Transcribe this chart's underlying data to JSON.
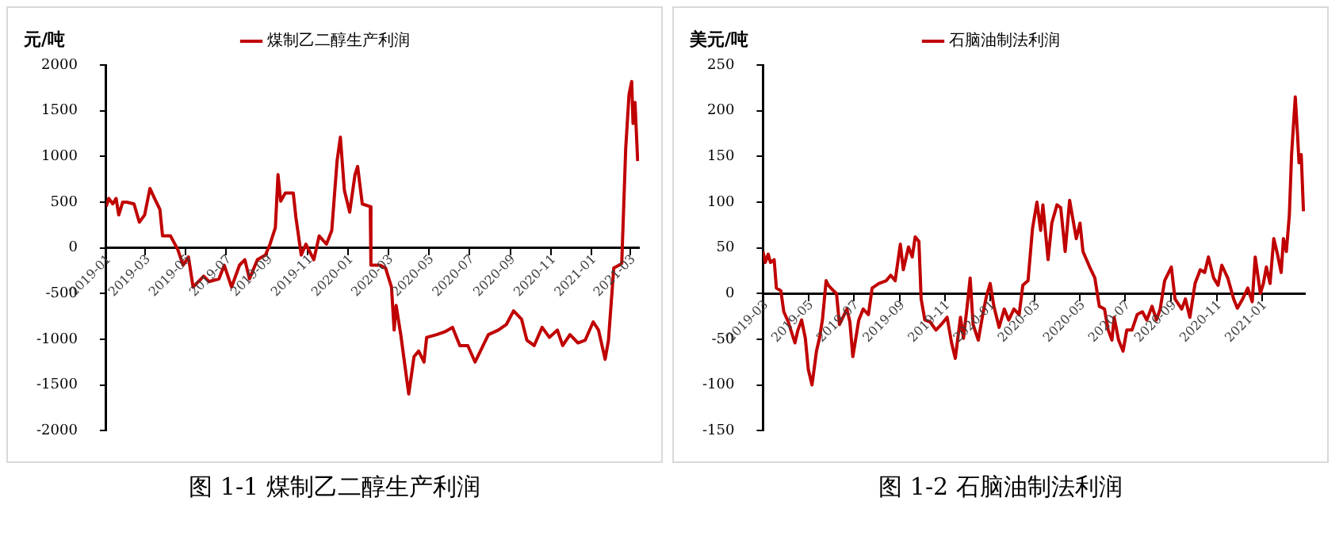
{
  "chart_data": [
    {
      "type": "line",
      "title": "图 1-1  煤制乙二醇生产利润",
      "ylabel": "元/吨",
      "legend": "top",
      "grid": false,
      "marker": "none",
      "line_style": "solid",
      "xlim": [
        "2019-01-01",
        "2021-03-14"
      ],
      "xticks": [
        "2019-01",
        "2019-03",
        "2019-05",
        "2019-07",
        "2019-09",
        "2019-11",
        "2020-01",
        "2020-03",
        "2020-05",
        "2020-07",
        "2020-09",
        "2020-11",
        "2021-01",
        "2021-03"
      ],
      "ylim": [
        -2000,
        2000
      ],
      "yticks": [
        -2000,
        -1500,
        -1000,
        -500,
        0,
        500,
        1000,
        1500,
        2000
      ],
      "x": [
        "2019-01-01",
        "2019-01-05",
        "2019-01-11",
        "2019-01-16",
        "2019-01-20",
        "2019-01-26",
        "2019-02-01",
        "2019-02-12",
        "2019-02-20",
        "2019-02-28",
        "2019-03-08",
        "2019-03-15",
        "2019-03-23",
        "2019-03-27",
        "2019-04-08",
        "2019-04-19",
        "2019-04-27",
        "2019-05-05",
        "2019-05-12",
        "2019-05-28",
        "2019-06-05",
        "2019-06-20",
        "2019-06-28",
        "2019-07-09",
        "2019-07-21",
        "2019-07-29",
        "2019-08-05",
        "2019-08-17",
        "2019-08-29",
        "2019-09-05",
        "2019-09-13",
        "2019-09-17",
        "2019-09-21",
        "2019-09-28",
        "2019-10-10",
        "2019-10-14",
        "2019-10-22",
        "2019-10-29",
        "2019-11-10",
        "2019-11-18",
        "2019-11-29",
        "2019-12-07",
        "2019-12-15",
        "2019-12-20",
        "2019-12-26",
        "2020-01-03",
        "2020-01-11",
        "2020-01-15",
        "2020-01-22",
        "2020-02-03",
        "2020-02-04",
        "2020-02-18",
        "2020-02-26",
        "2020-03-06",
        "2020-03-10",
        "2020-03-13",
        "2020-03-20",
        "2020-04-01",
        "2020-04-09",
        "2020-04-16",
        "2020-04-24",
        "2020-04-28",
        "2020-05-13",
        "2020-05-25",
        "2020-06-06",
        "2020-06-17",
        "2020-06-29",
        "2020-07-10",
        "2020-07-18",
        "2020-07-30",
        "2020-08-14",
        "2020-08-26",
        "2020-09-06",
        "2020-09-18",
        "2020-09-26",
        "2020-10-07",
        "2020-10-19",
        "2020-10-30",
        "2020-11-11",
        "2020-11-19",
        "2020-11-30",
        "2020-12-12",
        "2020-12-23",
        "2021-01-04",
        "2021-01-12",
        "2021-01-22",
        "2021-01-27",
        "2021-02-04",
        "2021-02-12",
        "2021-02-16",
        "2021-02-22",
        "2021-02-27",
        "2021-03-03",
        "2021-03-05",
        "2021-03-08",
        "2021-03-12"
      ],
      "series": [
        {
          "name": "煤制乙二醇生产利润",
          "color": "#c00000",
          "values": [
            450,
            540,
            480,
            540,
            360,
            500,
            500,
            480,
            280,
            360,
            650,
            540,
            420,
            130,
            130,
            -20,
            -190,
            -100,
            -430,
            -310,
            -370,
            -340,
            -190,
            -430,
            -190,
            -130,
            -340,
            -130,
            -80,
            40,
            220,
            800,
            510,
            600,
            600,
            330,
            -80,
            40,
            -130,
            130,
            40,
            190,
            950,
            1210,
            630,
            390,
            800,
            890,
            480,
            450,
            -190,
            -190,
            -220,
            -430,
            -900,
            -630,
            -950,
            -1600,
            -1190,
            -1130,
            -1250,
            -980,
            -950,
            -920,
            -870,
            -1070,
            -1070,
            -1250,
            -1130,
            -950,
            -900,
            -840,
            -690,
            -780,
            -1010,
            -1070,
            -870,
            -980,
            -900,
            -1070,
            -950,
            -1040,
            -1010,
            -810,
            -900,
            -1220,
            -1010,
            -220,
            -190,
            -170,
            1090,
            1680,
            1820,
            1360,
            1590,
            950
          ]
        }
      ]
    },
    {
      "type": "line",
      "title": "图 1-2  石脑油制法利润",
      "ylabel": "美元/吨",
      "legend": "top",
      "grid": false,
      "marker": "none",
      "line_style": "solid",
      "xlim": [
        "2019-03-01",
        "2021-02-28"
      ],
      "xticks": [
        "2019-03",
        "2019-05",
        "2019-07",
        "2019-09",
        "2019-11",
        "2020-01",
        "2020-03",
        "2020-05",
        "2020-07",
        "2020-09",
        "2020-11",
        "2021-01"
      ],
      "ylim": [
        -150,
        250
      ],
      "yticks": [
        -150,
        -100,
        -50,
        0,
        50,
        100,
        150,
        200,
        250
      ],
      "x": [
        "2019-03-01",
        "2019-03-04",
        "2019-03-08",
        "2019-03-11",
        "2019-03-16",
        "2019-03-19",
        "2019-03-25",
        "2019-03-29",
        "2019-04-04",
        "2019-04-13",
        "2019-04-17",
        "2019-04-22",
        "2019-04-27",
        "2019-05-01",
        "2019-05-06",
        "2019-05-12",
        "2019-05-16",
        "2019-05-20",
        "2019-05-25",
        "2019-05-28",
        "2019-06-04",
        "2019-06-08",
        "2019-06-12",
        "2019-06-22",
        "2019-06-26",
        "2019-06-30",
        "2019-07-08",
        "2019-07-14",
        "2019-07-21",
        "2019-07-26",
        "2019-08-04",
        "2019-08-14",
        "2019-08-20",
        "2019-08-26",
        "2019-09-02",
        "2019-09-06",
        "2019-09-13",
        "2019-09-18",
        "2019-09-22",
        "2019-09-27",
        "2019-09-30",
        "2019-10-05",
        "2019-10-12",
        "2019-10-20",
        "2019-10-27",
        "2019-11-04",
        "2019-11-10",
        "2019-11-15",
        "2019-11-22",
        "2019-11-26",
        "2019-12-01",
        "2019-12-05",
        "2019-12-09",
        "2019-12-16",
        "2019-12-22",
        "2019-12-27",
        "2020-01-01",
        "2020-01-06",
        "2020-01-13",
        "2020-01-20",
        "2020-01-26",
        "2020-02-02",
        "2020-02-09",
        "2020-02-14",
        "2020-02-21",
        "2020-02-27",
        "2020-03-04",
        "2020-03-09",
        "2020-03-12",
        "2020-03-19",
        "2020-03-24",
        "2020-03-31",
        "2020-04-05",
        "2020-04-11",
        "2020-04-17",
        "2020-04-26",
        "2020-05-01",
        "2020-05-05",
        "2020-05-14",
        "2020-05-21",
        "2020-05-27",
        "2020-06-03",
        "2020-06-08",
        "2020-06-13",
        "2020-06-16",
        "2020-06-22",
        "2020-06-28",
        "2020-07-03",
        "2020-07-10",
        "2020-07-17",
        "2020-07-24",
        "2020-07-30",
        "2020-08-06",
        "2020-08-12",
        "2020-08-17",
        "2020-08-23",
        "2020-09-01",
        "2020-09-06",
        "2020-09-15",
        "2020-09-20",
        "2020-09-26",
        "2020-10-03",
        "2020-10-10",
        "2020-10-16",
        "2020-10-21",
        "2020-10-28",
        "2020-11-03",
        "2020-11-08",
        "2020-11-16",
        "2020-11-24",
        "2020-11-29",
        "2020-12-06",
        "2020-12-13",
        "2020-12-19",
        "2020-12-23",
        "2020-12-30",
        "2021-01-03",
        "2021-01-07",
        "2021-01-12",
        "2021-01-17",
        "2021-01-22",
        "2021-01-27",
        "2021-01-30",
        "2021-02-03",
        "2021-02-07",
        "2021-02-10",
        "2021-02-15",
        "2021-02-18",
        "2021-02-20",
        "2021-02-23",
        "2021-02-26"
      ],
      "series": [
        {
          "name": "石脑油制法利润",
          "color": "#c00000",
          "values": [
            46,
            34,
            43,
            34,
            37,
            6,
            3,
            -20,
            -31,
            -54,
            -40,
            -29,
            -49,
            -83,
            -100,
            -63,
            -49,
            -29,
            14,
            9,
            3,
            0,
            -34,
            -17,
            -31,
            -69,
            -29,
            -17,
            -23,
            6,
            11,
            14,
            20,
            14,
            54,
            26,
            51,
            40,
            62,
            57,
            -6,
            -29,
            -31,
            -40,
            -34,
            -26,
            -54,
            -71,
            -26,
            -49,
            -14,
            17,
            -34,
            -51,
            -23,
            -3,
            11,
            -14,
            -37,
            -17,
            -29,
            -17,
            -23,
            9,
            14,
            71,
            100,
            69,
            97,
            37,
            77,
            97,
            94,
            46,
            102,
            60,
            77,
            46,
            29,
            17,
            -14,
            -17,
            -40,
            -51,
            -26,
            -51,
            -63,
            -40,
            -40,
            -23,
            -20,
            -29,
            -14,
            -29,
            -17,
            14,
            29,
            -6,
            -17,
            -6,
            -26,
            11,
            26,
            23,
            40,
            17,
            9,
            31,
            17,
            -6,
            -16,
            -6,
            6,
            -9,
            40,
            0,
            11,
            29,
            11,
            60,
            43,
            23,
            60,
            46,
            86,
            152,
            215,
            174,
            143,
            152,
            90
          ]
        }
      ]
    }
  ]
}
